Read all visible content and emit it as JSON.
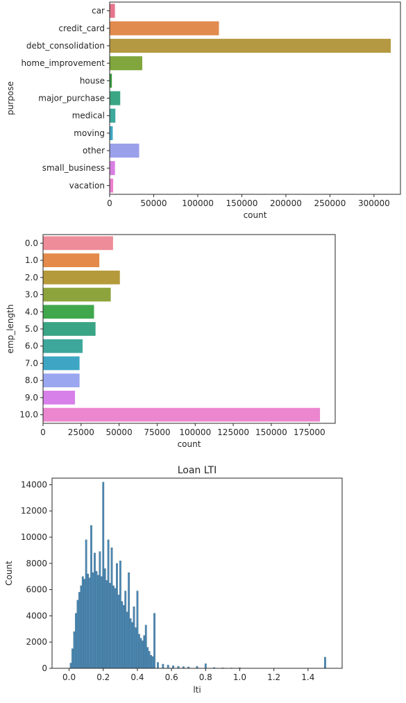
{
  "chart_data": [
    {
      "type": "bar",
      "orientation": "horizontal",
      "title": "",
      "xlabel": "count",
      "ylabel": "purpose",
      "xlim": [
        0,
        330000
      ],
      "xticks": [
        0,
        50000,
        100000,
        150000,
        200000,
        250000,
        300000
      ],
      "categories": [
        "car",
        "credit_card",
        "debt_consolidation",
        "home_improvement",
        "house",
        "major_purchase",
        "medical",
        "moving",
        "other",
        "small_business",
        "vacation"
      ],
      "values": [
        6000,
        124000,
        319000,
        37000,
        2500,
        12000,
        6500,
        3500,
        33500,
        6000,
        4000
      ],
      "colors": [
        "#e5768d",
        "#e28b4e",
        "#b59942",
        "#80a63d",
        "#3a9a3f",
        "#3ba683",
        "#3ea89c",
        "#3ea6c4",
        "#9aa0ea",
        "#d77ee0",
        "#ec7ecf"
      ],
      "grid": false,
      "legend": "none"
    },
    {
      "type": "bar",
      "orientation": "horizontal",
      "title": "",
      "xlabel": "count",
      "ylabel": "emp_length",
      "xlim": [
        0,
        192000
      ],
      "xticks": [
        0,
        25000,
        50000,
        75000,
        100000,
        125000,
        150000,
        175000
      ],
      "categories": [
        "0.0",
        "1.0",
        "2.0",
        "3.0",
        "4.0",
        "5.0",
        "6.0",
        "7.0",
        "8.0",
        "9.0",
        "10.0"
      ],
      "values": [
        46000,
        37000,
        50500,
        44500,
        33500,
        34500,
        26000,
        24000,
        24000,
        21000,
        182000
      ],
      "colors": [
        "#ee8c99",
        "#e48a4a",
        "#b59a3c",
        "#8da43c",
        "#40a74d",
        "#3aa585",
        "#3ea79c",
        "#3ea6c4",
        "#9aa6ef",
        "#d880ea",
        "#eb86cf"
      ],
      "grid": false,
      "legend": "none"
    },
    {
      "type": "histogram",
      "title": "Loan LTI",
      "xlabel": "lti",
      "ylabel": "Count",
      "xlim": [
        -0.1,
        1.6
      ],
      "ylim": [
        0,
        14500
      ],
      "xticks": [
        0.0,
        0.2,
        0.4,
        0.6,
        0.8,
        1.0,
        1.2,
        1.4
      ],
      "yticks": [
        0,
        2000,
        4000,
        6000,
        8000,
        10000,
        12000,
        14000
      ],
      "bar_color": "#4c87b0",
      "bins": [
        [
          0.01,
          400
        ],
        [
          0.02,
          1500
        ],
        [
          0.03,
          2800
        ],
        [
          0.04,
          4200
        ],
        [
          0.05,
          5200
        ],
        [
          0.06,
          5800
        ],
        [
          0.07,
          6300
        ],
        [
          0.08,
          7000
        ],
        [
          0.09,
          6800
        ],
        [
          0.1,
          9800
        ],
        [
          0.11,
          7200
        ],
        [
          0.12,
          6900
        ],
        [
          0.13,
          10900
        ],
        [
          0.14,
          7300
        ],
        [
          0.15,
          8800
        ],
        [
          0.16,
          7400
        ],
        [
          0.17,
          7100
        ],
        [
          0.18,
          8900
        ],
        [
          0.19,
          7000
        ],
        [
          0.2,
          14200
        ],
        [
          0.21,
          7600
        ],
        [
          0.22,
          6700
        ],
        [
          0.23,
          9800
        ],
        [
          0.24,
          6500
        ],
        [
          0.25,
          9200
        ],
        [
          0.26,
          6300
        ],
        [
          0.27,
          6100
        ],
        [
          0.28,
          8000
        ],
        [
          0.29,
          5600
        ],
        [
          0.3,
          8200
        ],
        [
          0.31,
          5100
        ],
        [
          0.32,
          4800
        ],
        [
          0.33,
          5900
        ],
        [
          0.34,
          4300
        ],
        [
          0.35,
          7300
        ],
        [
          0.36,
          3800
        ],
        [
          0.37,
          3500
        ],
        [
          0.38,
          4700
        ],
        [
          0.39,
          3100
        ],
        [
          0.4,
          5900
        ],
        [
          0.41,
          2600
        ],
        [
          0.42,
          2300
        ],
        [
          0.43,
          2100
        ],
        [
          0.44,
          2500
        ],
        [
          0.45,
          3300
        ],
        [
          0.46,
          1600
        ],
        [
          0.47,
          1300
        ],
        [
          0.48,
          1000
        ],
        [
          0.49,
          900
        ],
        [
          0.5,
          4200
        ],
        [
          0.52,
          450
        ],
        [
          0.55,
          320
        ],
        [
          0.58,
          250
        ],
        [
          0.61,
          200
        ],
        [
          0.64,
          160
        ],
        [
          0.67,
          130
        ],
        [
          0.7,
          110
        ],
        [
          0.75,
          150
        ],
        [
          0.8,
          350
        ],
        [
          0.85,
          60
        ],
        [
          0.9,
          40
        ],
        [
          0.95,
          30
        ],
        [
          1.0,
          50
        ],
        [
          1.1,
          20
        ],
        [
          1.2,
          15
        ],
        [
          1.3,
          10
        ],
        [
          1.4,
          10
        ],
        [
          1.5,
          850
        ]
      ],
      "grid": false,
      "legend": "none"
    }
  ]
}
